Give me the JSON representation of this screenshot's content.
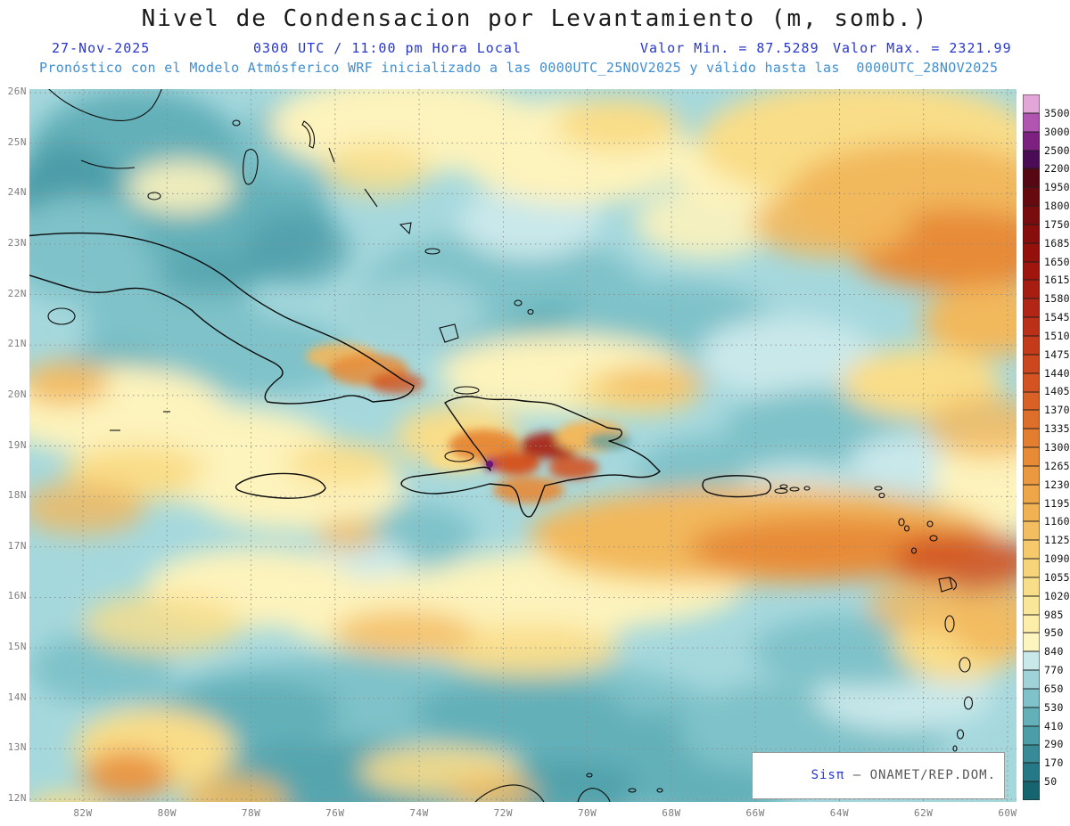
{
  "header": {
    "title": "Nivel de Condensacion por Levantamiento (m, somb.)",
    "date": "27-Nov-2025",
    "valid_time": "0300 UTC / 11:00 pm Hora Local",
    "valor_min": "Valor Min. = 87.5289",
    "valor_max": "Valor Max. = 2321.99",
    "forecast_line": "Pronóstico con el Modelo Atmósferico WRF inicializado a las 0000UTC_25NOV2025 y válido hasta las  0000UTC_28NOV2025"
  },
  "axes": {
    "lat_labels": [
      "26N",
      "25N",
      "24N",
      "23N",
      "22N",
      "21N",
      "20N",
      "19N",
      "18N",
      "17N",
      "16N",
      "15N",
      "14N",
      "13N",
      "12N"
    ],
    "lon_labels": [
      "82W",
      "80W",
      "78W",
      "76W",
      "74W",
      "72W",
      "70W",
      "68W",
      "66W",
      "64W",
      "62W",
      "60W"
    ]
  },
  "colorbar": {
    "tick_labels": [
      "3500",
      "3000",
      "2500",
      "2200",
      "1950",
      "1800",
      "1750",
      "1685",
      "1650",
      "1615",
      "1580",
      "1545",
      "1510",
      "1475",
      "1440",
      "1405",
      "1370",
      "1335",
      "1300",
      "1265",
      "1230",
      "1195",
      "1160",
      "1125",
      "1090",
      "1055",
      "1020",
      "985",
      "950",
      "840",
      "770",
      "650",
      "530",
      "410",
      "290",
      "170",
      "50"
    ],
    "cell_colors": [
      "#e3a7d7",
      "#b055b2",
      "#7c2180",
      "#4a0d55",
      "#560812",
      "#670a10",
      "#780c0e",
      "#870e0c",
      "#93100b",
      "#9e160e",
      "#a81d12",
      "#b22615",
      "#bb3018",
      "#c43b1b",
      "#cc471e",
      "#d35421",
      "#d96125",
      "#de6f2a",
      "#e37d30",
      "#e78b37",
      "#eb9940",
      "#eea649",
      "#f1b254",
      "#f3be5f",
      "#f5c96c",
      "#f7d47a",
      "#f9de89",
      "#fae698",
      "#fceea9",
      "#fdf5c0",
      "#c9e8ea",
      "#9fd3d8",
      "#7fc2c9",
      "#63b0b9",
      "#4b9da8",
      "#378a96",
      "#257885",
      "#156470"
    ]
  },
  "map": {
    "field_colors": {
      "base_teal": "#a5d8dd",
      "dark_teal": "#378a96",
      "pale_yellow": "#fdf3bc",
      "yellow": "#f9dd88",
      "orange": "#e78b37",
      "deep_orange": "#d35421",
      "dark_red": "#a81d12",
      "max_purple": "#7c2180"
    }
  },
  "watermark": {
    "brand": "Sisπ",
    "text": " – ONAMET/REP.DOM."
  }
}
